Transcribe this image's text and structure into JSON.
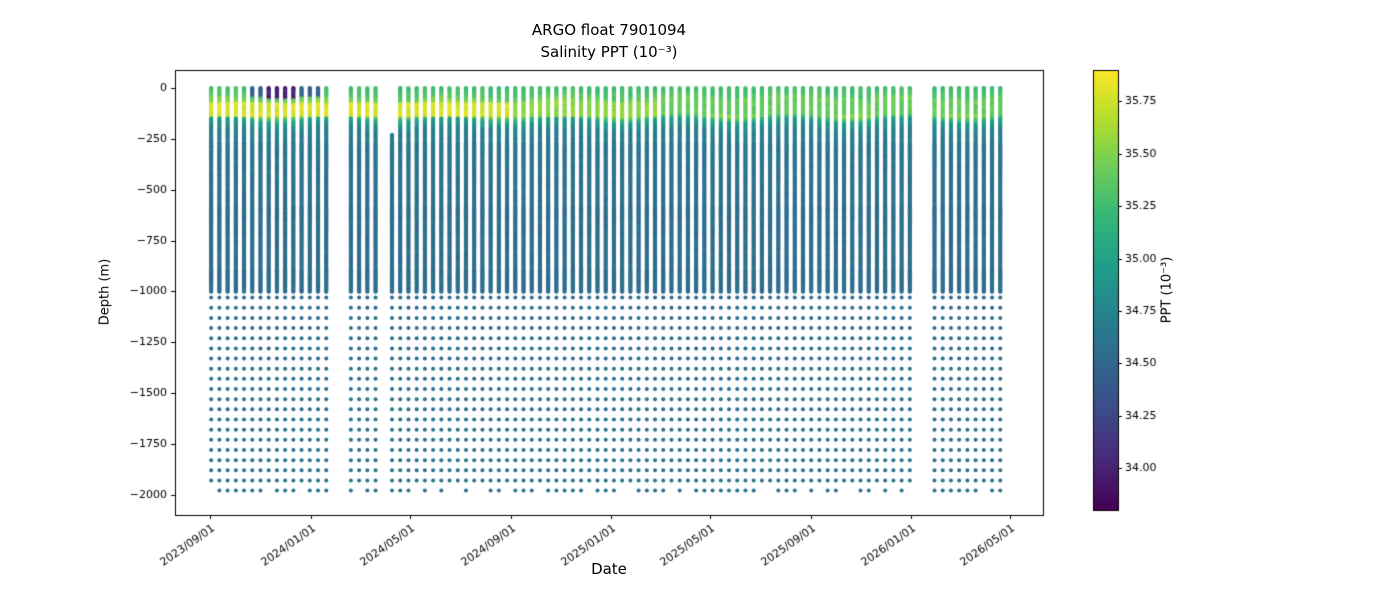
{
  "chart_data": {
    "type": "scatter",
    "title": "ARGO float 7901094",
    "subtitle": "Salinity PPT (10⁻³)",
    "xlabel": "Date",
    "ylabel": "Depth (m)",
    "xlim": [
      "2023-07-20",
      "2026-06-10"
    ],
    "ylim": [
      -2100,
      90
    ],
    "x_ticks": [
      {
        "date": "2023-09-01",
        "label": "2023/09/01"
      },
      {
        "date": "2024-01-01",
        "label": "2024/01/01"
      },
      {
        "date": "2024-05-01",
        "label": "2024/05/01"
      },
      {
        "date": "2024-09-01",
        "label": "2024/09/01"
      },
      {
        "date": "2025-01-01",
        "label": "2025/01/01"
      },
      {
        "date": "2025-05-01",
        "label": "2025/05/01"
      },
      {
        "date": "2025-09-01",
        "label": "2025/09/01"
      },
      {
        "date": "2026-01-01",
        "label": "2026/01/01"
      },
      {
        "date": "2026-05-01",
        "label": "2026/05/01"
      }
    ],
    "y_ticks": [
      {
        "value": 0,
        "label": "0"
      },
      {
        "value": -250,
        "label": "−250"
      },
      {
        "value": -500,
        "label": "−500"
      },
      {
        "value": -750,
        "label": "−750"
      },
      {
        "value": -1000,
        "label": "−1000"
      },
      {
        "value": -1250,
        "label": "−1250"
      },
      {
        "value": -1500,
        "label": "−1500"
      },
      {
        "value": -1750,
        "label": "−1750"
      },
      {
        "value": -2000,
        "label": "−2000"
      }
    ],
    "colorbar": {
      "label": "PPT (10⁻³)",
      "colormap": "viridis",
      "vmin": 33.8,
      "vmax": 35.9,
      "ticks": [
        {
          "value": 34.0,
          "label": "34.00"
        },
        {
          "value": 34.25,
          "label": "34.25"
        },
        {
          "value": 34.5,
          "label": "34.50"
        },
        {
          "value": 34.75,
          "label": "34.75"
        },
        {
          "value": 35.0,
          "label": "35.00"
        },
        {
          "value": 35.25,
          "label": "35.25"
        },
        {
          "value": 35.5,
          "label": "35.50"
        },
        {
          "value": 35.75,
          "label": "35.75"
        }
      ]
    },
    "colormap_stops": [
      [
        68,
        1,
        84
      ],
      [
        72,
        40,
        120
      ],
      [
        62,
        74,
        137
      ],
      [
        49,
        104,
        142
      ],
      [
        38,
        130,
        142
      ],
      [
        31,
        158,
        137
      ],
      [
        53,
        183,
        121
      ],
      [
        109,
        205,
        89
      ],
      [
        180,
        222,
        44
      ],
      [
        253,
        231,
        37
      ]
    ],
    "profiles": {
      "start_date": "2023-09-02",
      "end_date": "2026-04-20",
      "interval_days": 10,
      "gaps": [
        [
          "2024-01-25",
          "2024-02-15"
        ],
        [
          "2024-03-28",
          "2024-04-03"
        ],
        [
          "2026-01-05",
          "2026-01-24"
        ]
      ],
      "partial_profiles": [
        {
          "date": "2024-04-09",
          "top_depth": -230
        }
      ],
      "shallow_depth_step_m": 10,
      "shallow_max_depth_m": -1000,
      "deep_start_depth_m": -1030,
      "deep_depth_step_m": 50,
      "deep_max_depth_m": -1980
    },
    "salinity_profile_by_depth": [
      [
        0,
        35.25
      ],
      [
        -40,
        35.32
      ],
      [
        -70,
        35.5
      ],
      [
        -100,
        35.65
      ],
      [
        -135,
        35.5
      ],
      [
        -165,
        34.95
      ],
      [
        -210,
        34.72
      ],
      [
        -300,
        34.62
      ],
      [
        -600,
        34.56
      ],
      [
        -1000,
        34.55
      ],
      [
        -1500,
        34.58
      ],
      [
        -1980,
        34.6
      ]
    ],
    "salinity_anomalies": [
      {
        "from": "2023-10-22",
        "to": "2024-01-12",
        "depth_top": 0,
        "depth_bottom": -45,
        "ppt": 34.45
      },
      {
        "from": "2023-11-05",
        "to": "2023-12-20",
        "depth_top": 0,
        "depth_bottom": -55,
        "ppt": 34.0
      },
      {
        "from": "2023-09-01",
        "to": "2024-09-01",
        "depth_top": -75,
        "depth_bottom": -140,
        "ppt": 35.78
      },
      {
        "from": "2024-09-01",
        "to": "2025-03-01",
        "depth_top": -75,
        "depth_bottom": -140,
        "ppt": 35.55
      },
      {
        "from": "2025-03-01",
        "to": "2026-04-20",
        "depth_top": -60,
        "depth_bottom": -130,
        "ppt": 35.4
      }
    ]
  }
}
